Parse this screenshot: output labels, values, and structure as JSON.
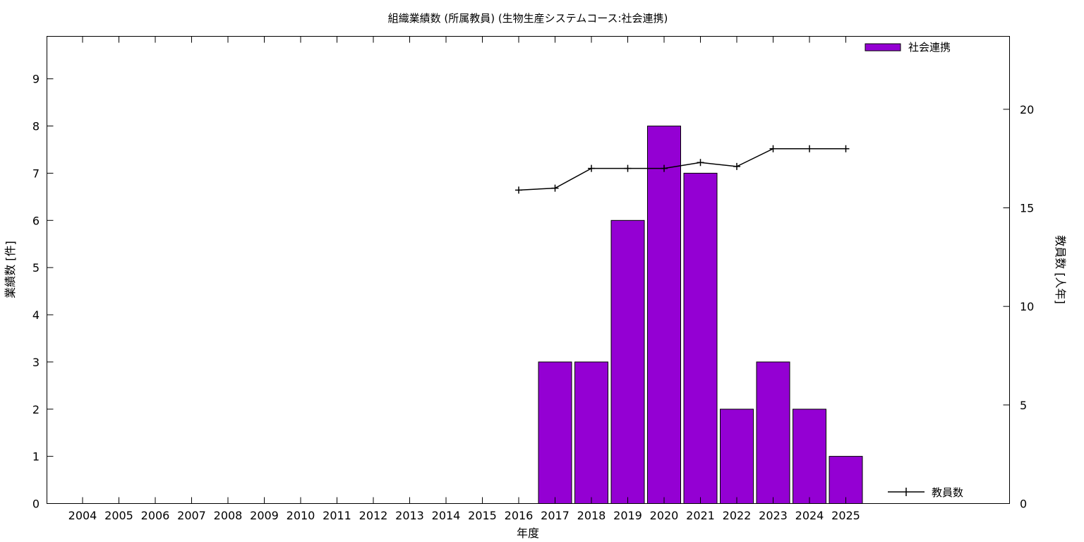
{
  "chart_data": {
    "type": "bar",
    "title": "組織業績数 (所属教員) (生物生産システムコース:社会連携)",
    "xlabel": "年度",
    "ylabel": "業績数 [件]",
    "y2label": "教員数 [人年]",
    "categories": [
      "2004",
      "2005",
      "2006",
      "2007",
      "2008",
      "2009",
      "2010",
      "2011",
      "2012",
      "2013",
      "2014",
      "2015",
      "2016",
      "2017",
      "2018",
      "2019",
      "2020",
      "2021",
      "2022",
      "2023",
      "2024",
      "2025"
    ],
    "ylim": [
      0,
      9.9
    ],
    "y2lim": [
      0,
      23.7
    ],
    "yticks": [
      0,
      1,
      2,
      3,
      4,
      5,
      6,
      7,
      8,
      9
    ],
    "y2ticks": [
      0,
      5,
      10,
      15,
      20
    ],
    "grid": false,
    "series": [
      {
        "name": "社会連携",
        "kind": "bar",
        "axis": "left",
        "color": "#9400d3",
        "values": [
          null,
          null,
          null,
          null,
          null,
          null,
          null,
          null,
          null,
          null,
          null,
          null,
          null,
          3,
          3,
          6,
          8,
          7,
          2,
          3,
          2,
          1
        ]
      },
      {
        "name": "教員数",
        "kind": "line",
        "axis": "right",
        "color": "#000000",
        "marker": "plus",
        "values": [
          null,
          null,
          null,
          null,
          null,
          null,
          null,
          null,
          null,
          null,
          null,
          null,
          15.9,
          16.0,
          17.0,
          17.0,
          17.0,
          17.3,
          17.1,
          18.0,
          18.0,
          18.0
        ]
      }
    ],
    "legend": [
      "top-right",
      "bottom-right"
    ]
  }
}
